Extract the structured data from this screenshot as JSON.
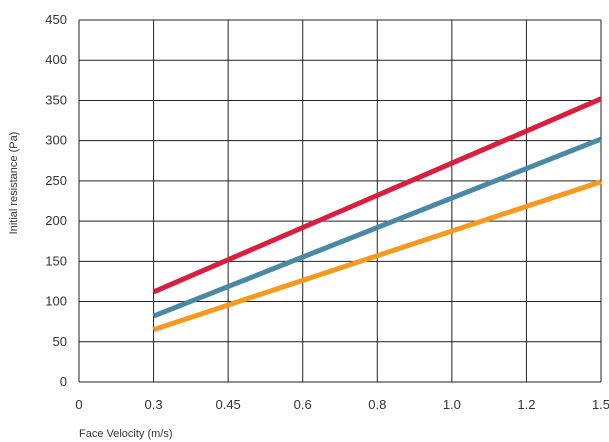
{
  "chart_data": {
    "type": "line",
    "title": "",
    "xlabel": "Face Velocity (m/s)",
    "ylabel": "Initial resistance (Pa)",
    "categories": [
      "0",
      "0.3",
      "0.45",
      "0.6",
      "0.8",
      "1.0",
      "1.2",
      "1.5"
    ],
    "ylim": [
      0,
      450
    ],
    "yticks": [
      0,
      50,
      100,
      150,
      200,
      250,
      300,
      350,
      400,
      450
    ],
    "grid": true,
    "legend": "none",
    "series": [
      {
        "color": "#d81f3f",
        "points": [
          [
            "0.3",
            112
          ],
          [
            "1.5",
            352
          ]
        ]
      },
      {
        "color": "#4a89a6",
        "points": [
          [
            "0.3",
            82
          ],
          [
            "1.5",
            302
          ]
        ]
      },
      {
        "color": "#f5991f",
        "points": [
          [
            "0.3",
            65
          ],
          [
            "1.5",
            249
          ]
        ]
      }
    ]
  }
}
